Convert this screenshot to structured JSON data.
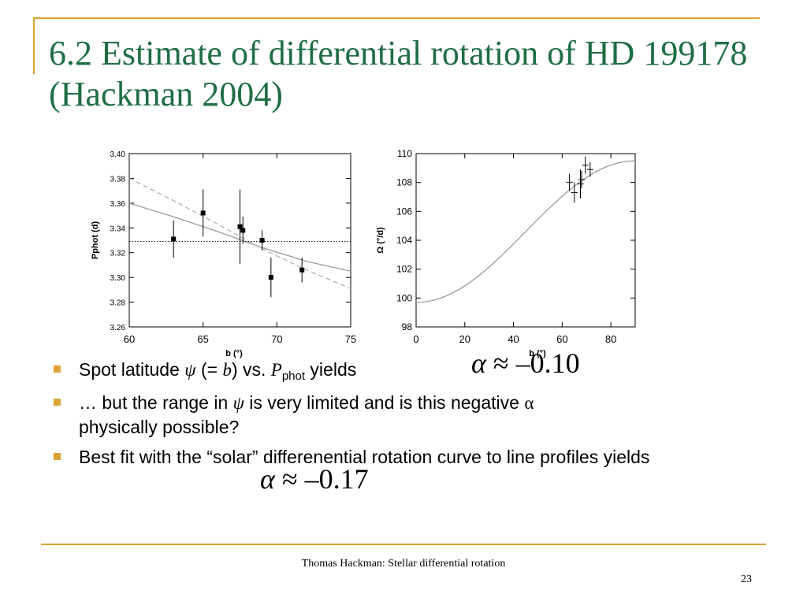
{
  "slide": {
    "title": "6.2 Estimate of differential rotation of HD 199178 (Hackman 2004)",
    "footer": "Thomas Hackman: Stellar differential rotation",
    "page_number": "23",
    "accent_color": "#d9a431",
    "title_color": "#1f6e43"
  },
  "bullets": {
    "b1": {
      "pre": "Spot latitude ",
      "psi": "ψ",
      "mid1": " (= ",
      "b": "b",
      "mid2": ") vs. ",
      "p": "P",
      "sub": "phot",
      "post": " yields",
      "math": "≈ –0.10",
      "alpha": "α"
    },
    "b2": {
      "pre": "… but the range in ",
      "psi": "ψ",
      "post": " is very limited and is this negative ",
      "alpha": "α",
      "line2": "physically possible?"
    },
    "b3": {
      "text": "Best fit with the “solar” differenential rotation curve to line profiles yields",
      "math": "≈ –0.17",
      "alpha": "α"
    }
  },
  "chart_data": [
    {
      "type": "scatter",
      "xlabel": "b (°)",
      "ylabel": "Pphot (d)",
      "xlim": [
        60,
        75
      ],
      "ylim": [
        3.26,
        3.4
      ],
      "xticks": [
        60,
        65,
        70,
        75
      ],
      "yticks": [
        3.26,
        3.28,
        3.3,
        3.32,
        3.34,
        3.36,
        3.38,
        3.4
      ],
      "points": [
        {
          "x": 63.0,
          "y": 3.331,
          "err": 0.015
        },
        {
          "x": 65.0,
          "y": 3.352,
          "err": 0.019
        },
        {
          "x": 67.5,
          "y": 3.341,
          "err": 0.03
        },
        {
          "x": 67.7,
          "y": 3.338,
          "err": 0.011
        },
        {
          "x": 69.0,
          "y": 3.33,
          "err": 0.008
        },
        {
          "x": 69.6,
          "y": 3.3,
          "err": 0.016
        },
        {
          "x": 71.7,
          "y": 3.306,
          "err": 0.01
        }
      ],
      "series": [
        {
          "style": "solid",
          "points": [
            [
              60,
              3.36
            ],
            [
              63,
              3.349
            ],
            [
              66,
              3.337
            ],
            [
              69,
              3.324
            ],
            [
              72,
              3.313
            ],
            [
              75,
              3.305
            ]
          ]
        },
        {
          "style": "dashed",
          "points": [
            [
              60,
              3.38
            ],
            [
              63,
              3.362
            ],
            [
              66,
              3.343
            ],
            [
              69,
              3.323
            ],
            [
              72,
              3.306
            ],
            [
              75,
              3.291
            ]
          ]
        },
        {
          "style": "dotted",
          "points": [
            [
              60,
              3.329
            ],
            [
              75,
              3.329
            ]
          ]
        }
      ]
    },
    {
      "type": "scatter",
      "xlabel": "b (°)",
      "ylabel": "Ω (°/d)",
      "xlim": [
        0,
        90
      ],
      "ylim": [
        98,
        110
      ],
      "xticks": [
        0,
        20,
        40,
        60,
        80
      ],
      "yticks": [
        98,
        100,
        102,
        104,
        106,
        108,
        110
      ],
      "points": [
        {
          "x": 63.0,
          "y": 108.0,
          "err": 0.6
        },
        {
          "x": 65.0,
          "y": 107.3,
          "err": 0.7
        },
        {
          "x": 67.5,
          "y": 107.9,
          "err": 1.0
        },
        {
          "x": 68.0,
          "y": 108.2,
          "err": 0.6
        },
        {
          "x": 69.5,
          "y": 109.2,
          "err": 0.6
        },
        {
          "x": 71.5,
          "y": 108.9,
          "err": 0.5
        }
      ],
      "series": [
        {
          "style": "solid",
          "curve": "Omega = 109.5 - 9.8*cos^2(b)"
        }
      ]
    }
  ]
}
